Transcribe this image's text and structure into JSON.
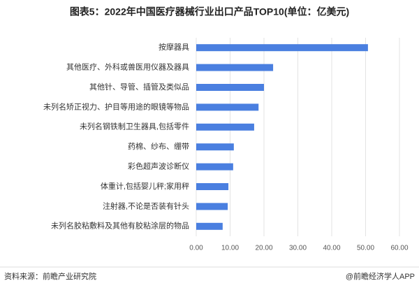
{
  "chart_data": {
    "type": "bar",
    "orientation": "horizontal",
    "title": "图表5：2022年中国医疗器械行业出口产品TOP10(单位：亿美元)",
    "categories": [
      "按摩器具",
      "其他医疗、外科或兽医用仪器及器具",
      "其他针、导管、插管及类似品",
      "未列名矫正视力、护目等用途的眼镜等物品",
      "未列名钢铁制卫生器具,包括零件",
      "药棉、纱布、绷带",
      "彩色超声波诊断仪",
      "体重计,包括婴儿秤;家用秤",
      "注射器,不论是否装有针头",
      "未列名胶粘敷料及其他有胶粘涂层的物品"
    ],
    "values": [
      50.7,
      22.7,
      20.0,
      18.4,
      17.1,
      11.1,
      10.9,
      9.5,
      9.3,
      7.8
    ],
    "color": "#4a7fe0",
    "xlim": [
      0,
      60
    ],
    "xticks": [
      {
        "value": 0,
        "label": "0.00"
      },
      {
        "value": 10,
        "label": "10.00"
      },
      {
        "value": 20,
        "label": "20.00"
      },
      {
        "value": 30,
        "label": "30.00"
      },
      {
        "value": 40,
        "label": "40.00"
      },
      {
        "value": 50,
        "label": "50.00"
      },
      {
        "value": 60,
        "label": "60.00"
      }
    ],
    "grid": true,
    "source": "资料来源：前瞻产业研究院",
    "credit": "@前瞻经济学人APP"
  }
}
